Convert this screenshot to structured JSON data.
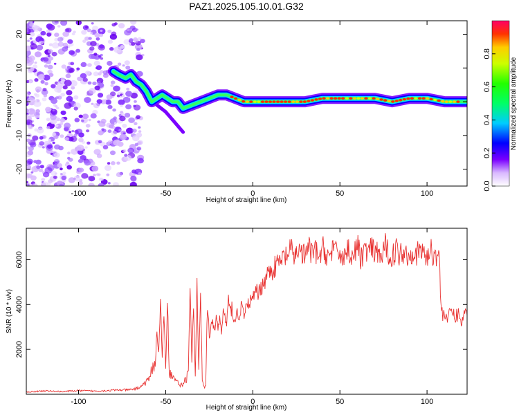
{
  "title": "PAZ1.2025.105.10.01.G32",
  "colors": {
    "line": "#e8302f",
    "frame": "#000000",
    "background": "#ffffff"
  },
  "chart_data": [
    {
      "type": "heatmap",
      "xlabel": "Height of straight line (km)",
      "ylabel": "Frequency (Hz)",
      "xlim": [
        -130,
        123
      ],
      "ylim": [
        -25,
        24
      ],
      "xticks": [
        -100,
        -50,
        0,
        50,
        100
      ],
      "yticks": [
        20,
        10,
        0,
        -10,
        -20
      ],
      "colorbar": {
        "label": "Normalized spectral amplitude",
        "range": [
          0,
          1
        ],
        "ticks": [
          0.0,
          0.2,
          0.4,
          0.6,
          0.8
        ]
      },
      "ridge": {
        "x": [
          -80,
          -77,
          -73,
          -70,
          -67,
          -64,
          -61,
          -58,
          -55,
          -52,
          -49,
          -46,
          -43,
          -40,
          -35,
          -30,
          -25,
          -20,
          -15,
          -10,
          -5,
          0,
          10,
          20,
          30,
          40,
          50,
          60,
          70,
          80,
          90,
          100,
          110,
          123
        ],
        "y": [
          9,
          8,
          7,
          8,
          6,
          5,
          3,
          0,
          1,
          2,
          1,
          0,
          0,
          -2,
          -1,
          0,
          1,
          2,
          2,
          1,
          0,
          0,
          0,
          0,
          0,
          1,
          1,
          1,
          1,
          0,
          1,
          1,
          0,
          0
        ]
      },
      "noise_region": [
        -130,
        -63
      ]
    },
    {
      "type": "line",
      "xlabel": "Height of straight line (km)",
      "ylabel": "SNR (10 * v/v)",
      "xlim": [
        -130,
        123
      ],
      "ylim": [
        0,
        7400
      ],
      "xticks": [
        -100,
        -50,
        0,
        50,
        100
      ],
      "yticks": [
        2000,
        4000,
        6000
      ],
      "series": [
        {
          "name": "SNR",
          "x": [
            -130,
            -120,
            -110,
            -100,
            -90,
            -80,
            -70,
            -65,
            -62,
            -60,
            -58,
            -56,
            -55,
            -54,
            -53,
            -52,
            -51,
            -50,
            -49,
            -48,
            -47,
            -46,
            -45,
            -44,
            -43,
            -42,
            -41,
            -40,
            -39,
            -38,
            -37,
            -36,
            -35,
            -34,
            -33,
            -32,
            -31,
            -30,
            -29,
            -28,
            -27,
            -26,
            -25,
            -24,
            -23,
            -22,
            -21,
            -20,
            -19,
            -18,
            -17,
            -16,
            -15,
            -14,
            -13,
            -12,
            -11,
            -10,
            -9,
            -8,
            -7,
            -6,
            -5,
            -4,
            -3,
            -2,
            -1,
            0,
            2,
            4,
            6,
            8,
            10,
            12,
            14,
            16,
            18,
            20,
            22,
            24,
            26,
            28,
            30,
            32,
            34,
            36,
            38,
            40,
            42,
            44,
            46,
            48,
            50,
            52,
            54,
            56,
            58,
            60,
            62,
            64,
            66,
            68,
            70,
            72,
            74,
            76,
            78,
            80,
            82,
            84,
            86,
            88,
            90,
            92,
            94,
            96,
            98,
            100,
            102,
            104,
            106,
            107,
            108,
            109,
            110,
            112,
            114,
            116,
            118,
            120,
            122,
            123
          ],
          "y": [
            100,
            150,
            120,
            160,
            140,
            180,
            200,
            300,
            500,
            600,
            1100,
            1400,
            2800,
            1800,
            4200,
            1600,
            3500,
            1200,
            4300,
            1000,
            900,
            700,
            800,
            600,
            500,
            400,
            500,
            400,
            600,
            700,
            1200,
            4600,
            1500,
            3800,
            800,
            4900,
            1000,
            4700,
            700,
            300,
            500,
            4100,
            2600,
            2900,
            3200,
            2700,
            3500,
            3000,
            3300,
            2800,
            3700,
            3400,
            3100,
            4200,
            3600,
            3900,
            3400,
            3300,
            3600,
            3500,
            3800,
            3900,
            3500,
            3700,
            3900,
            4300,
            4000,
            4300,
            4500,
            4600,
            5000,
            5300,
            5500,
            5600,
            5800,
            5900,
            6100,
            6200,
            6400,
            6100,
            6500,
            6300,
            6100,
            6600,
            6200,
            6400,
            6000,
            6500,
            6300,
            6100,
            6600,
            6200,
            6400,
            6000,
            6500,
            6300,
            6200,
            6600,
            6100,
            6400,
            6300,
            6500,
            6200,
            6400,
            6000,
            6600,
            6300,
            6100,
            6500,
            6200,
            6400,
            6300,
            6100,
            6500,
            6200,
            6400,
            6300,
            6100,
            6400,
            6200,
            6300,
            6200,
            3900,
            3500,
            3700,
            3300,
            3800,
            3400,
            3600,
            3200,
            3700,
            3500
          ]
        }
      ]
    }
  ]
}
